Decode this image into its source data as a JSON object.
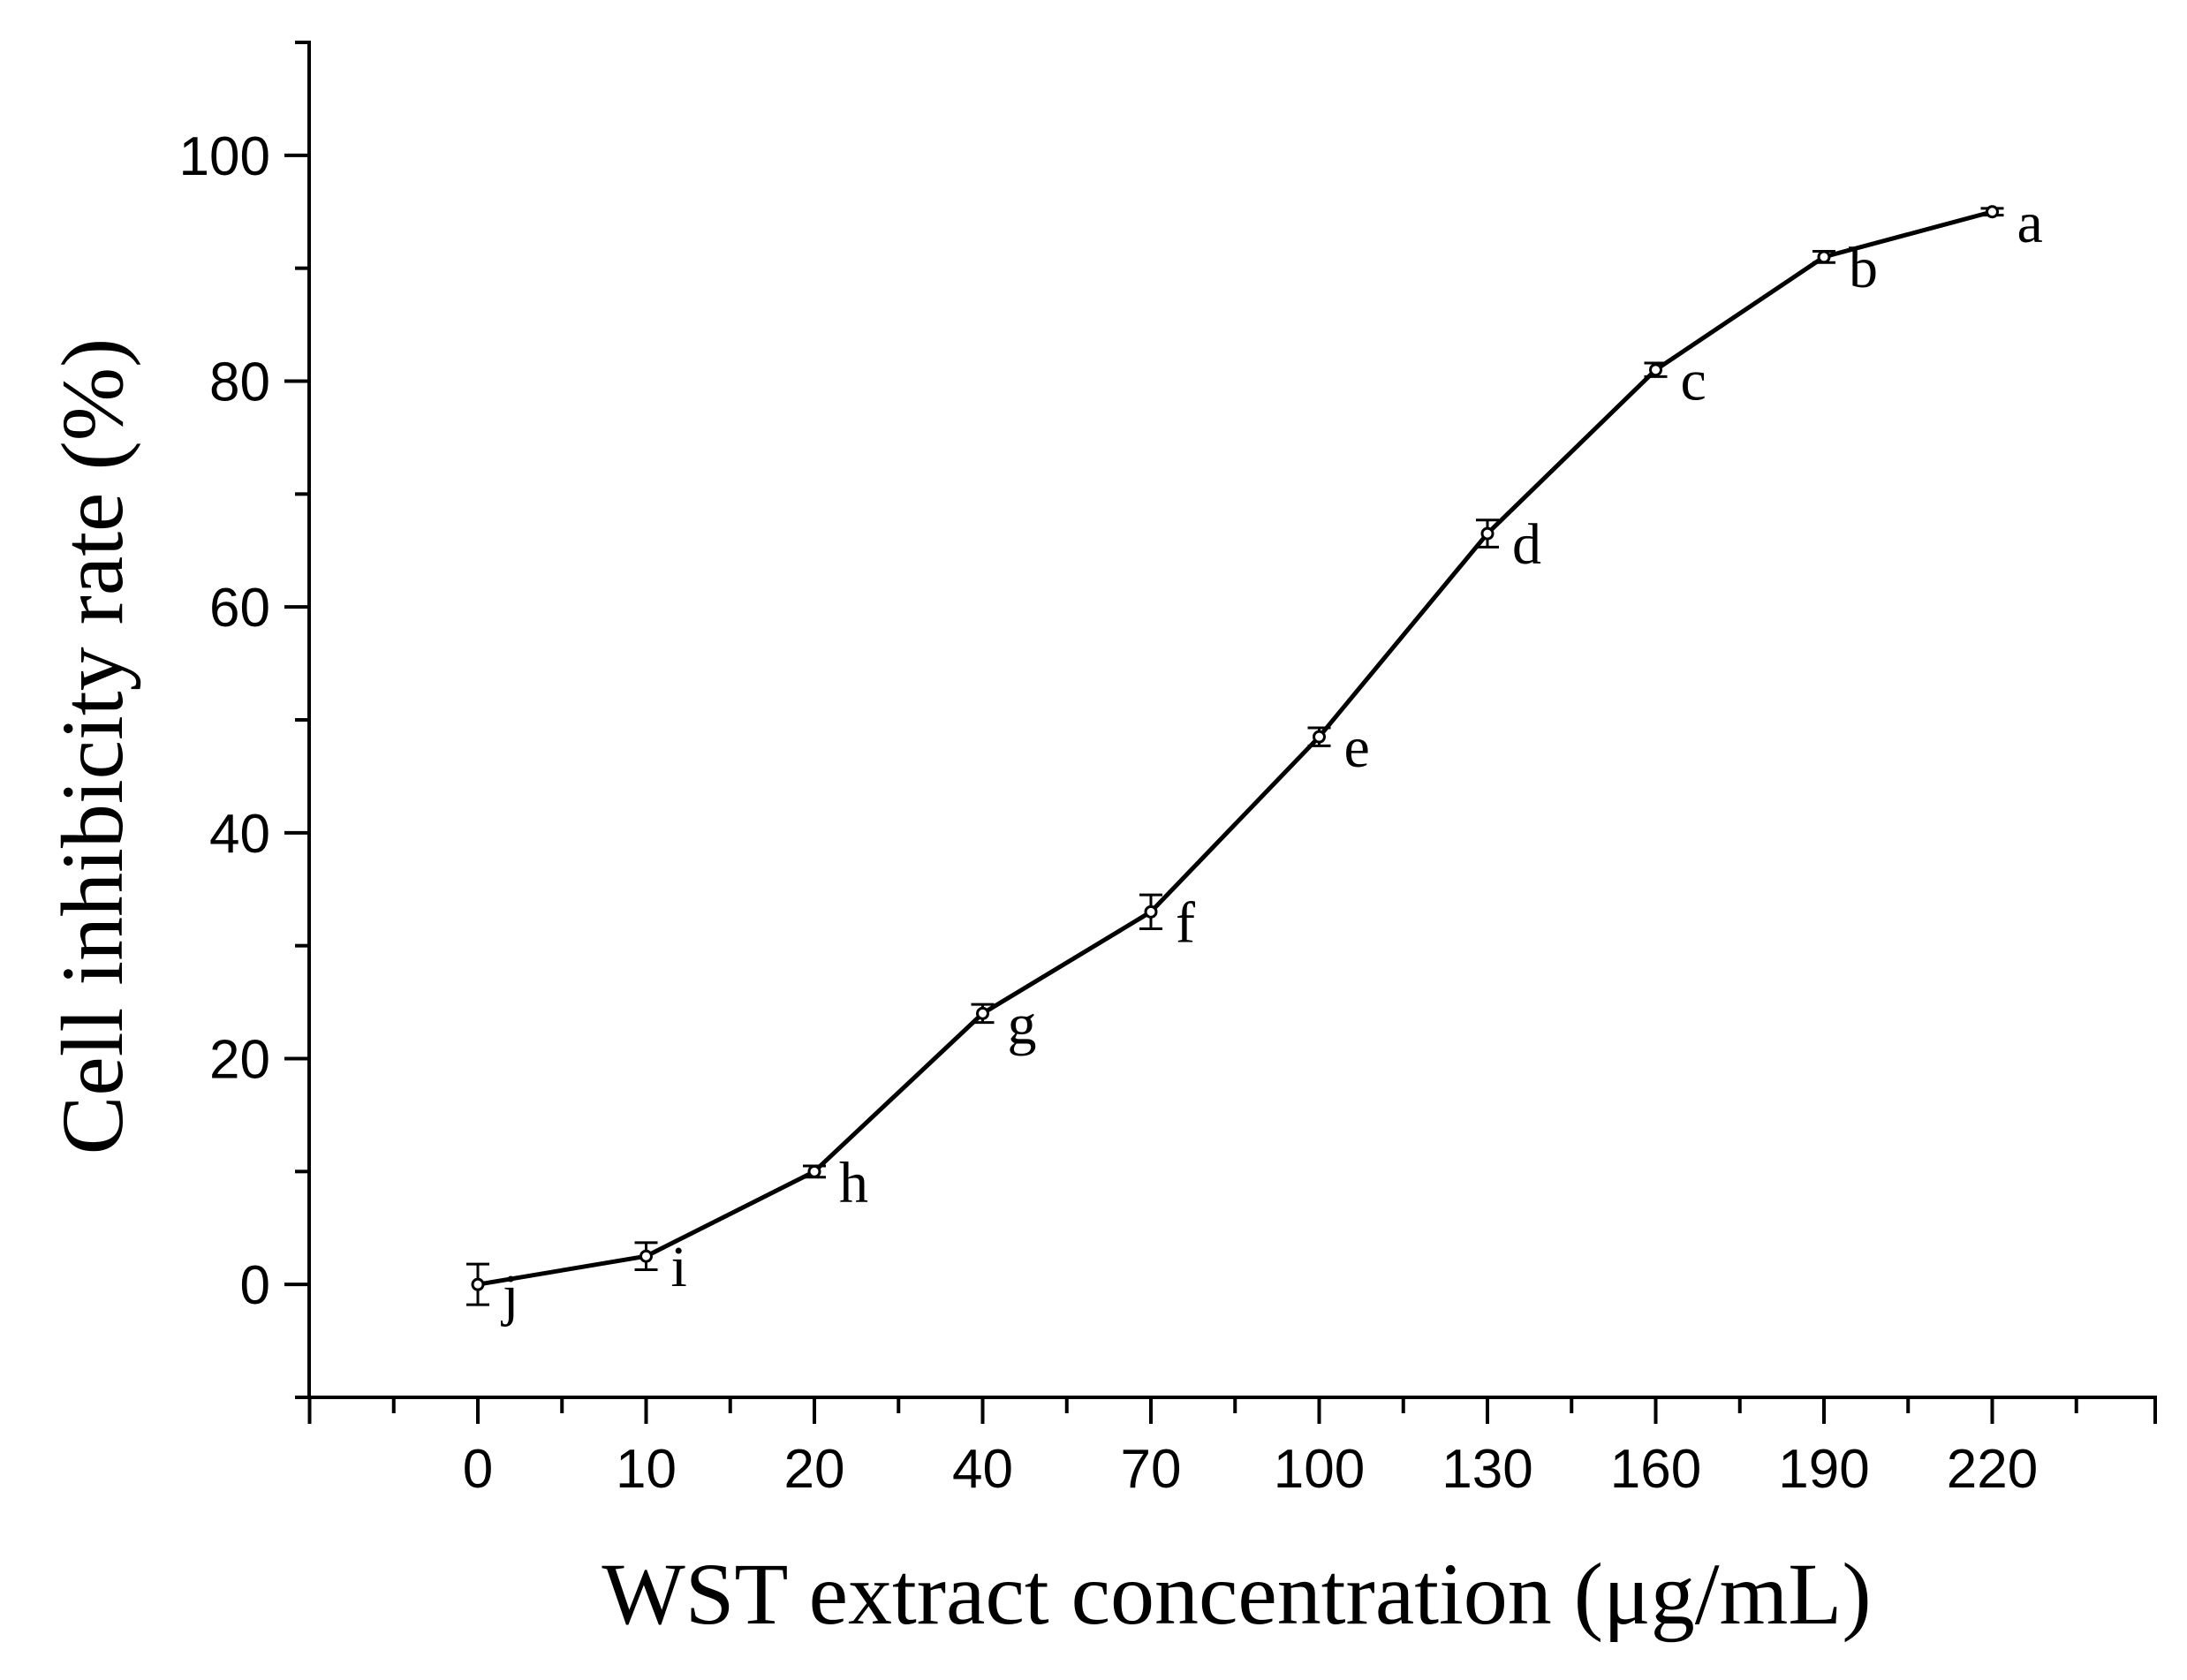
{
  "chart_data": {
    "type": "line",
    "title": "",
    "xlabel": "WST extract concentration (μg/mL)",
    "ylabel": "Cell inhibicity rate (%)",
    "x_axis_scale": "categorical-equal-spacing",
    "categories": [
      "0",
      "10",
      "20",
      "40",
      "70",
      "100",
      "130",
      "160",
      "190",
      "220"
    ],
    "ylim": [
      -10,
      110
    ],
    "y_ticks": [
      0,
      20,
      40,
      60,
      80,
      100
    ],
    "y_minor_step": 10,
    "series": [
      {
        "name": "Cell inhibicity rate",
        "values": [
          0.0,
          2.5,
          10.0,
          24.0,
          33.0,
          48.5,
          66.5,
          81.0,
          91.0,
          95.0
        ],
        "errors": [
          1.8,
          1.2,
          0.5,
          0.8,
          1.5,
          0.8,
          1.2,
          0.6,
          0.5,
          0.3
        ],
        "point_labels": [
          "j",
          "i",
          "h",
          "g",
          "f",
          "e",
          "d",
          "c",
          "b",
          "a"
        ]
      }
    ],
    "legend": "none",
    "grid": false
  }
}
